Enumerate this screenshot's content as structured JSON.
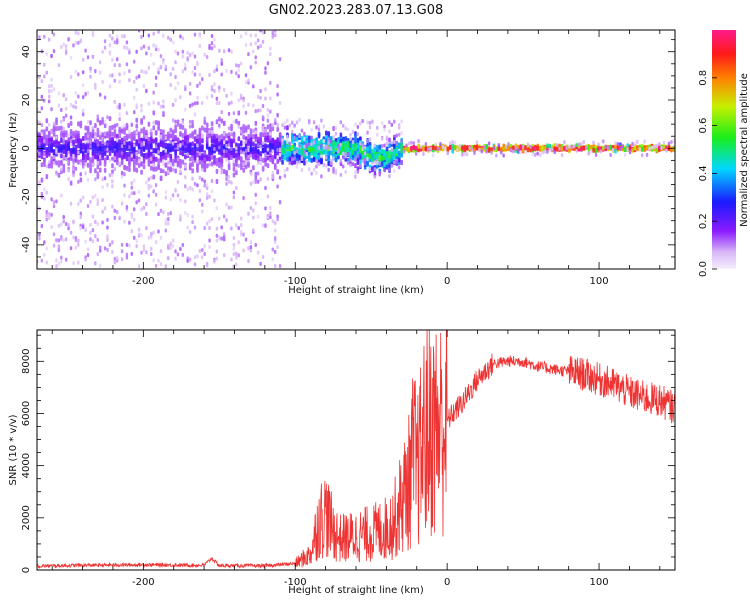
{
  "figure": {
    "title": "GN02.2023.283.07.13.G08"
  },
  "chart_data": [
    {
      "type": "heatmap",
      "name": "spectrogram",
      "title": "GN02.2023.283.07.13.G08",
      "xlabel": "Height of straight line (km)",
      "ylabel": "Frequency (Hz)",
      "xlim": [
        -270,
        150
      ],
      "ylim": [
        -50,
        49
      ],
      "x_ticks": [
        -200,
        -100,
        0,
        100
      ],
      "y_ticks": [
        -40,
        -20,
        0,
        20,
        40
      ],
      "colorbar": {
        "label": "Normalized spectral amplitude",
        "range": [
          0,
          1
        ],
        "ticks": [
          "0.0",
          "0.2",
          "0.4",
          "0.6",
          "0.8"
        ],
        "tick_values": [
          0,
          0.2,
          0.4,
          0.6,
          0.8
        ],
        "colormap": "rainbow (white-violet-blue-cyan-green-yellow-red-magenta)"
      },
      "regions": [
        {
          "x_range": [
            -270,
            -110
          ],
          "freq_spread_hz": 49,
          "core_spread_hz": 10,
          "amplitude": 0.15,
          "description": "broad diffuse noise"
        },
        {
          "x_range": [
            -110,
            -30
          ],
          "freq_spread_hz": 12,
          "core_spread_hz": 6,
          "amplitude": 0.45,
          "description": "concentrating signal, dip near -40 km"
        },
        {
          "x_range": [
            -30,
            150
          ],
          "freq_spread_hz": 3,
          "core_spread_hz": 1,
          "amplitude": 0.9,
          "description": "narrow line at 0 Hz"
        }
      ]
    },
    {
      "type": "line",
      "name": "snr",
      "xlabel": "Height of straight line (km)",
      "ylabel": "SNR (10 * v/v)",
      "xlim": [
        -270,
        150
      ],
      "ylim": [
        0,
        9200
      ],
      "x_ticks": [
        -200,
        -100,
        0,
        100
      ],
      "y_ticks": [
        0,
        2000,
        4000,
        6000,
        8000
      ],
      "color": "#ee3333",
      "series": [
        {
          "name": "SNR",
          "x": [
            -270,
            -240,
            -200,
            -160,
            -155,
            -150,
            -120,
            -100,
            -90,
            -85,
            -80,
            -75,
            -70,
            -60,
            -50,
            -40,
            -35,
            -30,
            -25,
            -22,
            -20,
            -18,
            -15,
            -10,
            -5,
            0,
            5,
            10,
            20,
            30,
            40,
            50,
            60,
            70,
            80,
            90,
            100,
            110,
            120,
            130,
            140,
            150
          ],
          "y": [
            150,
            180,
            200,
            180,
            450,
            170,
            160,
            250,
            600,
            1800,
            2200,
            1500,
            1200,
            1300,
            1400,
            1600,
            1900,
            2600,
            3400,
            4500,
            3800,
            4200,
            5200,
            5400,
            5500,
            5700,
            6100,
            6400,
            7300,
            7900,
            8000,
            8000,
            7800,
            7700,
            7600,
            7500,
            7300,
            7100,
            6800,
            6600,
            6500,
            6200
          ]
        }
      ]
    }
  ]
}
